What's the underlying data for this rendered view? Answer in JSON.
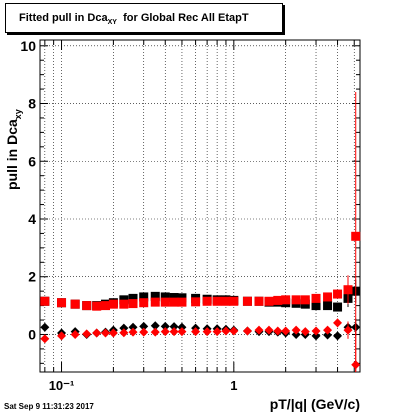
{
  "title": {
    "prefix": "Fitted pull in Dca",
    "subscript": "XY",
    "suffix": "for Global Rec All EtapT"
  },
  "axes": {
    "ylabel_prefix": "pull in Dca",
    "ylabel_subscript": "xy",
    "xlabel": "pT/|q| (GeV/c)"
  },
  "footer": "Sat Sep  9 11:31:23 2017",
  "colors": {
    "black_series": "#000000",
    "red_series": "#ff0000",
    "grid": "#000000"
  },
  "chart_data": {
    "type": "scatter",
    "xscale": "log",
    "xlim": [
      0.075,
      5.4
    ],
    "ylim": [
      -1.3,
      10.2
    ],
    "grid": true,
    "xticks": [
      {
        "value": 0.1,
        "label": "10⁻¹"
      },
      {
        "value": 1,
        "label": "1"
      }
    ],
    "yticks": [
      0,
      2,
      4,
      6,
      8,
      10
    ],
    "series": [
      {
        "color": "black",
        "marker": "diamond",
        "x": [
          0.08,
          0.1,
          0.12,
          0.14,
          0.16,
          0.18,
          0.2,
          0.23,
          0.26,
          0.3,
          0.35,
          0.4,
          0.45,
          0.5,
          0.6,
          0.7,
          0.8,
          0.9,
          1.0,
          1.2,
          1.4,
          1.6,
          1.8,
          2.0,
          2.3,
          2.6,
          3.0,
          3.5,
          4.0,
          4.6,
          5.1
        ],
        "y": [
          0.25,
          0.05,
          0.1,
          0.0,
          0.05,
          0.08,
          0.15,
          0.22,
          0.25,
          0.28,
          0.3,
          0.28,
          0.27,
          0.25,
          0.22,
          0.2,
          0.2,
          0.18,
          0.15,
          0.12,
          0.1,
          0.1,
          0.08,
          0.05,
          0.0,
          0.0,
          -0.05,
          -0.02,
          -0.05,
          0.25,
          0.25
        ],
        "err": [
          0.05,
          0.05,
          0.05,
          0.05,
          0.05,
          0.05,
          0.06,
          0.07,
          0.08,
          0.08,
          0.08,
          0.08,
          0.08,
          0.07,
          0.07,
          0.07,
          0.06,
          0.06,
          0.06,
          0.06,
          0.06,
          0.06,
          0.06,
          0.06,
          0.06,
          0.07,
          0.08,
          0.1,
          0.12,
          0.15,
          0.3
        ]
      },
      {
        "color": "black",
        "marker": "square",
        "x": [
          0.08,
          0.1,
          0.12,
          0.14,
          0.16,
          0.18,
          0.2,
          0.23,
          0.26,
          0.3,
          0.35,
          0.4,
          0.45,
          0.5,
          0.6,
          0.7,
          0.8,
          0.9,
          1.0,
          1.2,
          1.4,
          1.6,
          1.8,
          2.0,
          2.3,
          2.6,
          3.0,
          3.5,
          4.0,
          4.6,
          5.1
        ],
        "y": [
          1.15,
          1.1,
          1.05,
          1.0,
          1.0,
          1.05,
          1.1,
          1.2,
          1.25,
          1.3,
          1.32,
          1.3,
          1.28,
          1.27,
          1.25,
          1.22,
          1.2,
          1.2,
          1.18,
          1.15,
          1.15,
          1.12,
          1.12,
          1.1,
          1.08,
          1.05,
          1.0,
          1.0,
          0.95,
          1.25,
          1.5
        ],
        "err": [
          0.05,
          0.05,
          0.05,
          0.05,
          0.06,
          0.07,
          0.08,
          0.08,
          0.09,
          0.1,
          0.1,
          0.1,
          0.1,
          0.09,
          0.09,
          0.08,
          0.08,
          0.08,
          0.07,
          0.07,
          0.07,
          0.07,
          0.07,
          0.07,
          0.07,
          0.08,
          0.1,
          0.12,
          0.15,
          0.3,
          0.4
        ]
      },
      {
        "color": "red",
        "marker": "diamond",
        "x": [
          0.08,
          0.1,
          0.12,
          0.14,
          0.16,
          0.18,
          0.2,
          0.23,
          0.26,
          0.3,
          0.35,
          0.4,
          0.45,
          0.5,
          0.6,
          0.7,
          0.8,
          0.9,
          1.0,
          1.2,
          1.4,
          1.6,
          1.8,
          2.0,
          2.3,
          2.6,
          3.0,
          3.5,
          4.0,
          4.6,
          5.1
        ],
        "y": [
          -0.15,
          -0.05,
          0.0,
          0.02,
          0.05,
          0.05,
          0.05,
          0.06,
          0.08,
          0.08,
          0.08,
          0.1,
          0.1,
          0.1,
          0.1,
          0.1,
          0.1,
          0.12,
          0.12,
          0.12,
          0.15,
          0.15,
          0.12,
          0.12,
          0.15,
          0.1,
          0.12,
          0.15,
          0.4,
          0.15,
          -1.05
        ],
        "err": [
          0.05,
          0.05,
          0.05,
          0.05,
          0.05,
          0.05,
          0.05,
          0.05,
          0.05,
          0.05,
          0.05,
          0.05,
          0.05,
          0.05,
          0.05,
          0.05,
          0.05,
          0.05,
          0.05,
          0.05,
          0.06,
          0.06,
          0.06,
          0.06,
          0.06,
          0.07,
          0.08,
          0.1,
          0.15,
          0.3,
          1.3
        ]
      },
      {
        "color": "red",
        "marker": "square",
        "x": [
          0.08,
          0.1,
          0.12,
          0.14,
          0.16,
          0.18,
          0.2,
          0.23,
          0.26,
          0.3,
          0.35,
          0.4,
          0.45,
          0.5,
          0.6,
          0.7,
          0.8,
          0.9,
          1.0,
          1.2,
          1.4,
          1.6,
          1.8,
          2.0,
          2.3,
          2.6,
          3.0,
          3.5,
          4.0,
          4.6,
          5.1
        ],
        "y": [
          1.15,
          1.1,
          1.05,
          1.0,
          0.98,
          1.0,
          1.05,
          1.05,
          1.07,
          1.1,
          1.12,
          1.12,
          1.12,
          1.12,
          1.13,
          1.15,
          1.15,
          1.15,
          1.15,
          1.15,
          1.15,
          1.15,
          1.18,
          1.2,
          1.2,
          1.2,
          1.25,
          1.3,
          1.4,
          1.55,
          3.4
        ],
        "err": [
          0.05,
          0.05,
          0.05,
          0.05,
          0.05,
          0.05,
          0.05,
          0.05,
          0.05,
          0.05,
          0.05,
          0.05,
          0.05,
          0.05,
          0.05,
          0.05,
          0.05,
          0.05,
          0.05,
          0.05,
          0.06,
          0.06,
          0.06,
          0.07,
          0.07,
          0.08,
          0.1,
          0.12,
          0.15,
          0.5,
          5.0
        ]
      }
    ]
  }
}
